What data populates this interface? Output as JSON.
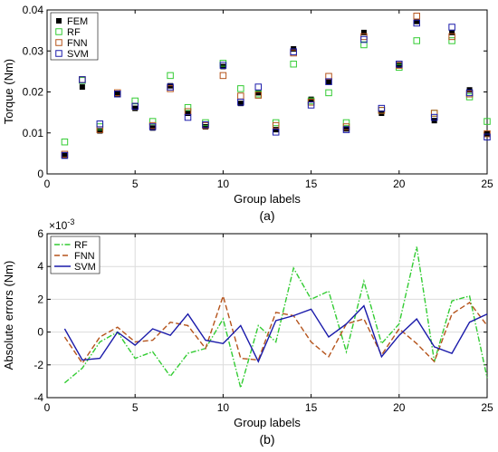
{
  "chart_data": [
    {
      "type": "scatter",
      "panel": "(a)",
      "xlabel": "Group labels",
      "ylabel": "Torque (Nm)",
      "xlim": [
        0,
        25
      ],
      "ylim": [
        0,
        0.04
      ],
      "xticks": [
        0,
        5,
        10,
        15,
        20,
        25
      ],
      "yticks": [
        0,
        0.01,
        0.02,
        0.03,
        0.04
      ],
      "xtick_labels": [
        "0",
        "5",
        "10",
        "15",
        "20",
        "25"
      ],
      "ytick_labels": [
        "0",
        "0.01",
        "0.02",
        "0.03",
        "0.04"
      ],
      "grid": false,
      "legend_position": "top-left",
      "x": [
        1,
        2,
        3,
        4,
        5,
        6,
        7,
        8,
        9,
        10,
        11,
        12,
        13,
        14,
        15,
        16,
        17,
        18,
        19,
        20,
        21,
        22,
        23,
        24,
        25
      ],
      "series": [
        {
          "name": "FEM",
          "color": "#000000",
          "marker": "filled-square",
          "values": [
            0.0045,
            0.0212,
            0.0105,
            0.0195,
            0.016,
            0.0112,
            0.0215,
            0.0148,
            0.0115,
            0.0262,
            0.0172,
            0.0198,
            0.0108,
            0.0305,
            0.0182,
            0.0225,
            0.011,
            0.0345,
            0.0148,
            0.0265,
            0.0372,
            0.013,
            0.0345,
            0.0205,
            0.0098
          ]
        },
        {
          "name": "RF",
          "color": "#33cc33",
          "marker": "open-square",
          "values": [
            0.0078,
            0.0228,
            0.0115,
            0.0195,
            0.0178,
            0.0128,
            0.024,
            0.0162,
            0.0125,
            0.027,
            0.0208,
            0.0195,
            0.0125,
            0.0268,
            0.0178,
            0.0198,
            0.0125,
            0.0315,
            0.0155,
            0.026,
            0.0325,
            0.0148,
            0.0325,
            0.0188,
            0.0128
          ]
        },
        {
          "name": "FNN",
          "color": "#b5541c",
          "marker": "open-square",
          "values": [
            0.0048,
            0.023,
            0.0108,
            0.0198,
            0.0165,
            0.0118,
            0.0208,
            0.0152,
            0.0118,
            0.024,
            0.019,
            0.0192,
            0.0118,
            0.0295,
            0.0175,
            0.0238,
            0.0115,
            0.0335,
            0.0155,
            0.0265,
            0.0385,
            0.0148,
            0.0335,
            0.0195,
            0.0098
          ]
        },
        {
          "name": "SVM",
          "color": "#1a1aaa",
          "marker": "open-square",
          "values": [
            0.0045,
            0.023,
            0.0122,
            0.0195,
            0.0165,
            0.0115,
            0.0212,
            0.0138,
            0.012,
            0.0265,
            0.0175,
            0.0212,
            0.0102,
            0.0298,
            0.0168,
            0.0225,
            0.0108,
            0.0328,
            0.016,
            0.0268,
            0.0368,
            0.0138,
            0.0358,
            0.0198,
            0.009
          ]
        }
      ]
    },
    {
      "type": "line",
      "panel": "(b)",
      "xlabel": "Group labels",
      "ylabel": "Absolute errors (Nm)",
      "exponent_label": "×10",
      "exponent_power": "-3",
      "xlim": [
        0,
        25
      ],
      "ylim": [
        -4,
        6
      ],
      "xticks": [
        0,
        5,
        10,
        15,
        20,
        25
      ],
      "yticks": [
        -4,
        -2,
        0,
        2,
        4,
        6
      ],
      "xtick_labels": [
        "0",
        "5",
        "10",
        "15",
        "20",
        "25"
      ],
      "ytick_labels": [
        "-4",
        "-2",
        "0",
        "2",
        "4",
        "6"
      ],
      "grid": true,
      "legend_position": "top-left",
      "x": [
        1,
        2,
        3,
        4,
        5,
        6,
        7,
        8,
        9,
        10,
        11,
        12,
        13,
        14,
        15,
        16,
        17,
        18,
        19,
        20,
        21,
        22,
        23,
        24,
        25
      ],
      "series": [
        {
          "name": "RF",
          "color": "#33cc33",
          "dash": "dash-dot",
          "values": [
            -3.1,
            -2.2,
            -0.6,
            0.0,
            -1.6,
            -1.2,
            -2.7,
            -1.3,
            -1.0,
            0.8,
            -3.4,
            0.4,
            -0.6,
            3.9,
            2.0,
            2.5,
            -1.2,
            3.1,
            -0.7,
            0.5,
            5.2,
            -1.8,
            1.9,
            2.2,
            -2.8
          ]
        },
        {
          "name": "FNN",
          "color": "#b5541c",
          "dash": "dashed",
          "values": [
            -0.3,
            -1.9,
            -0.3,
            0.3,
            -0.6,
            -0.5,
            0.6,
            0.4,
            -1.0,
            2.2,
            -1.6,
            -1.7,
            1.2,
            1.0,
            -0.6,
            -1.5,
            0.5,
            0.8,
            -1.4,
            0.2,
            -0.7,
            -1.8,
            1.1,
            1.8,
            0.4
          ]
        },
        {
          "name": "SVM",
          "color": "#1a1aaa",
          "dash": "solid",
          "values": [
            0.2,
            -1.7,
            -1.6,
            0.0,
            -0.8,
            0.2,
            -0.2,
            1.1,
            -0.5,
            -0.7,
            0.4,
            -1.8,
            0.7,
            1.0,
            1.4,
            -0.3,
            0.5,
            1.6,
            -1.5,
            -0.2,
            0.8,
            -0.9,
            -1.3,
            0.6,
            1.1
          ]
        }
      ]
    }
  ]
}
